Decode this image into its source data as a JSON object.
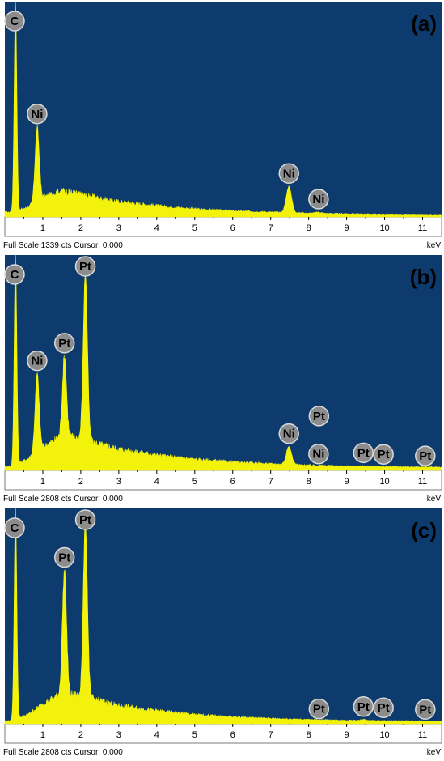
{
  "chart_data": [
    {
      "type": "area",
      "panel_label": "(a)",
      "footer": "Full Scale 1339 cts Cursor: 0.000",
      "unit": "keV",
      "xlim": [
        0.0,
        11.5
      ],
      "ylim": [
        0,
        1339
      ],
      "xticks": [
        1,
        2,
        3,
        4,
        5,
        6,
        7,
        8,
        9,
        10,
        11
      ],
      "background": "#0d3b6e",
      "spectrum_color": "#f2f20a",
      "background_level": [
        [
          0.2,
          30
        ],
        [
          0.6,
          60
        ],
        [
          1.0,
          120
        ],
        [
          1.5,
          165
        ],
        [
          2.0,
          140
        ],
        [
          3.0,
          95
        ],
        [
          4.0,
          70
        ],
        [
          5.0,
          50
        ],
        [
          6.0,
          38
        ],
        [
          7.0,
          30
        ],
        [
          8.0,
          24
        ],
        [
          9.0,
          20
        ],
        [
          10.0,
          17
        ],
        [
          11.5,
          15
        ]
      ],
      "peaks": [
        {
          "element": "C",
          "kev": 0.28,
          "counts": 1339
        },
        {
          "element": "Ni",
          "kev": 0.85,
          "counts": 560
        },
        {
          "element": "Ni",
          "kev": 7.48,
          "counts": 190
        },
        {
          "element": "Ni",
          "kev": 8.26,
          "counts": 30
        }
      ],
      "markers": [
        {
          "text": "C",
          "kev": 0.28,
          "counts": 1339
        },
        {
          "text": "Ni",
          "kev": 0.85,
          "counts": 560
        },
        {
          "text": "Ni",
          "kev": 7.48,
          "counts": 190
        },
        {
          "text": "Ni",
          "kev": 8.26,
          "counts": 30
        }
      ]
    },
    {
      "type": "area",
      "panel_label": "(b)",
      "footer": "Full Scale 2808 cts Cursor: 0.000",
      "unit": "keV",
      "xlim": [
        0.0,
        11.5
      ],
      "ylim": [
        0,
        2808
      ],
      "xticks": [
        1,
        2,
        3,
        4,
        5,
        6,
        7,
        8,
        9,
        10,
        11
      ],
      "background": "#0d3b6e",
      "spectrum_color": "#f2f20a",
      "background_level": [
        [
          0.2,
          50
        ],
        [
          0.6,
          150
        ],
        [
          1.0,
          300
        ],
        [
          1.5,
          450
        ],
        [
          2.0,
          420
        ],
        [
          2.5,
          340
        ],
        [
          3.0,
          280
        ],
        [
          4.0,
          200
        ],
        [
          5.0,
          145
        ],
        [
          6.0,
          110
        ],
        [
          7.0,
          85
        ],
        [
          8.0,
          68
        ],
        [
          9.0,
          56
        ],
        [
          10.0,
          48
        ],
        [
          11.5,
          42
        ]
      ],
      "peaks": [
        {
          "element": "C",
          "kev": 0.28,
          "counts": 2808
        },
        {
          "element": "Ni",
          "kev": 0.85,
          "counts": 1260
        },
        {
          "element": "Pt",
          "kev": 1.57,
          "counts": 1490
        },
        {
          "element": "Pt",
          "kev": 2.12,
          "counts": 2580
        },
        {
          "element": "Ni",
          "kev": 7.48,
          "counts": 310
        },
        {
          "element": "Ni",
          "kev": 8.26,
          "counts": 45
        },
        {
          "element": "Pt",
          "kev": 9.44,
          "counts": 60
        },
        {
          "element": "Pt",
          "kev": 11.07,
          "counts": 20
        }
      ],
      "markers": [
        {
          "text": "C",
          "kev": 0.28,
          "counts": 2808
        },
        {
          "text": "Pt",
          "kev": 2.12,
          "counts": 2580
        },
        {
          "text": "Ni",
          "kev": 0.85,
          "counts": 1260
        },
        {
          "text": "Pt",
          "kev": 1.57,
          "counts": 1490
        },
        {
          "text": "Ni",
          "kev": 7.48,
          "counts": 310
        },
        {
          "text": "Pt",
          "kev": 8.27,
          "counts": 540
        },
        {
          "text": "Ni",
          "kev": 8.26,
          "counts": 45
        },
        {
          "text": "Pt",
          "kev": 9.44,
          "counts": 60
        },
        {
          "text": "Pt",
          "kev": 9.97,
          "counts": 40
        },
        {
          "text": "Pt",
          "kev": 11.07,
          "counts": 20
        }
      ]
    },
    {
      "type": "area",
      "panel_label": "(c)",
      "footer": "Full Scale 2808 cts Cursor: 0.000",
      "unit": "keV",
      "xlim": [
        0.0,
        11.5
      ],
      "ylim": [
        0,
        2808
      ],
      "xticks": [
        1,
        2,
        3,
        4,
        5,
        6,
        7,
        8,
        9,
        10,
        11
      ],
      "background": "#0d3b6e",
      "spectrum_color": "#f2f20a",
      "background_level": [
        [
          0.2,
          40
        ],
        [
          0.6,
          120
        ],
        [
          1.0,
          260
        ],
        [
          1.5,
          390
        ],
        [
          2.0,
          370
        ],
        [
          2.5,
          300
        ],
        [
          3.0,
          240
        ],
        [
          4.0,
          170
        ],
        [
          5.0,
          120
        ],
        [
          6.0,
          90
        ],
        [
          7.0,
          70
        ],
        [
          8.0,
          55
        ],
        [
          9.0,
          46
        ],
        [
          10.0,
          40
        ],
        [
          11.5,
          35
        ]
      ],
      "peaks": [
        {
          "element": "C",
          "kev": 0.28,
          "counts": 2808
        },
        {
          "element": "Pt",
          "kev": 1.57,
          "counts": 2000
        },
        {
          "element": "Pt",
          "kev": 2.12,
          "counts": 2620
        },
        {
          "element": "Pt",
          "kev": 8.27,
          "counts": 25
        },
        {
          "element": "Pt",
          "kev": 9.44,
          "counts": 55
        },
        {
          "element": "Pt",
          "kev": 11.07,
          "counts": 18
        }
      ],
      "markers": [
        {
          "text": "C",
          "kev": 0.28,
          "counts": 2808
        },
        {
          "text": "Pt",
          "kev": 2.12,
          "counts": 2620
        },
        {
          "text": "Pt",
          "kev": 1.57,
          "counts": 2000
        },
        {
          "text": "Pt",
          "kev": 8.27,
          "counts": 25
        },
        {
          "text": "Pt",
          "kev": 9.44,
          "counts": 55
        },
        {
          "text": "Pt",
          "kev": 9.97,
          "counts": 40
        },
        {
          "text": "Pt",
          "kev": 11.07,
          "counts": 18
        }
      ]
    }
  ]
}
